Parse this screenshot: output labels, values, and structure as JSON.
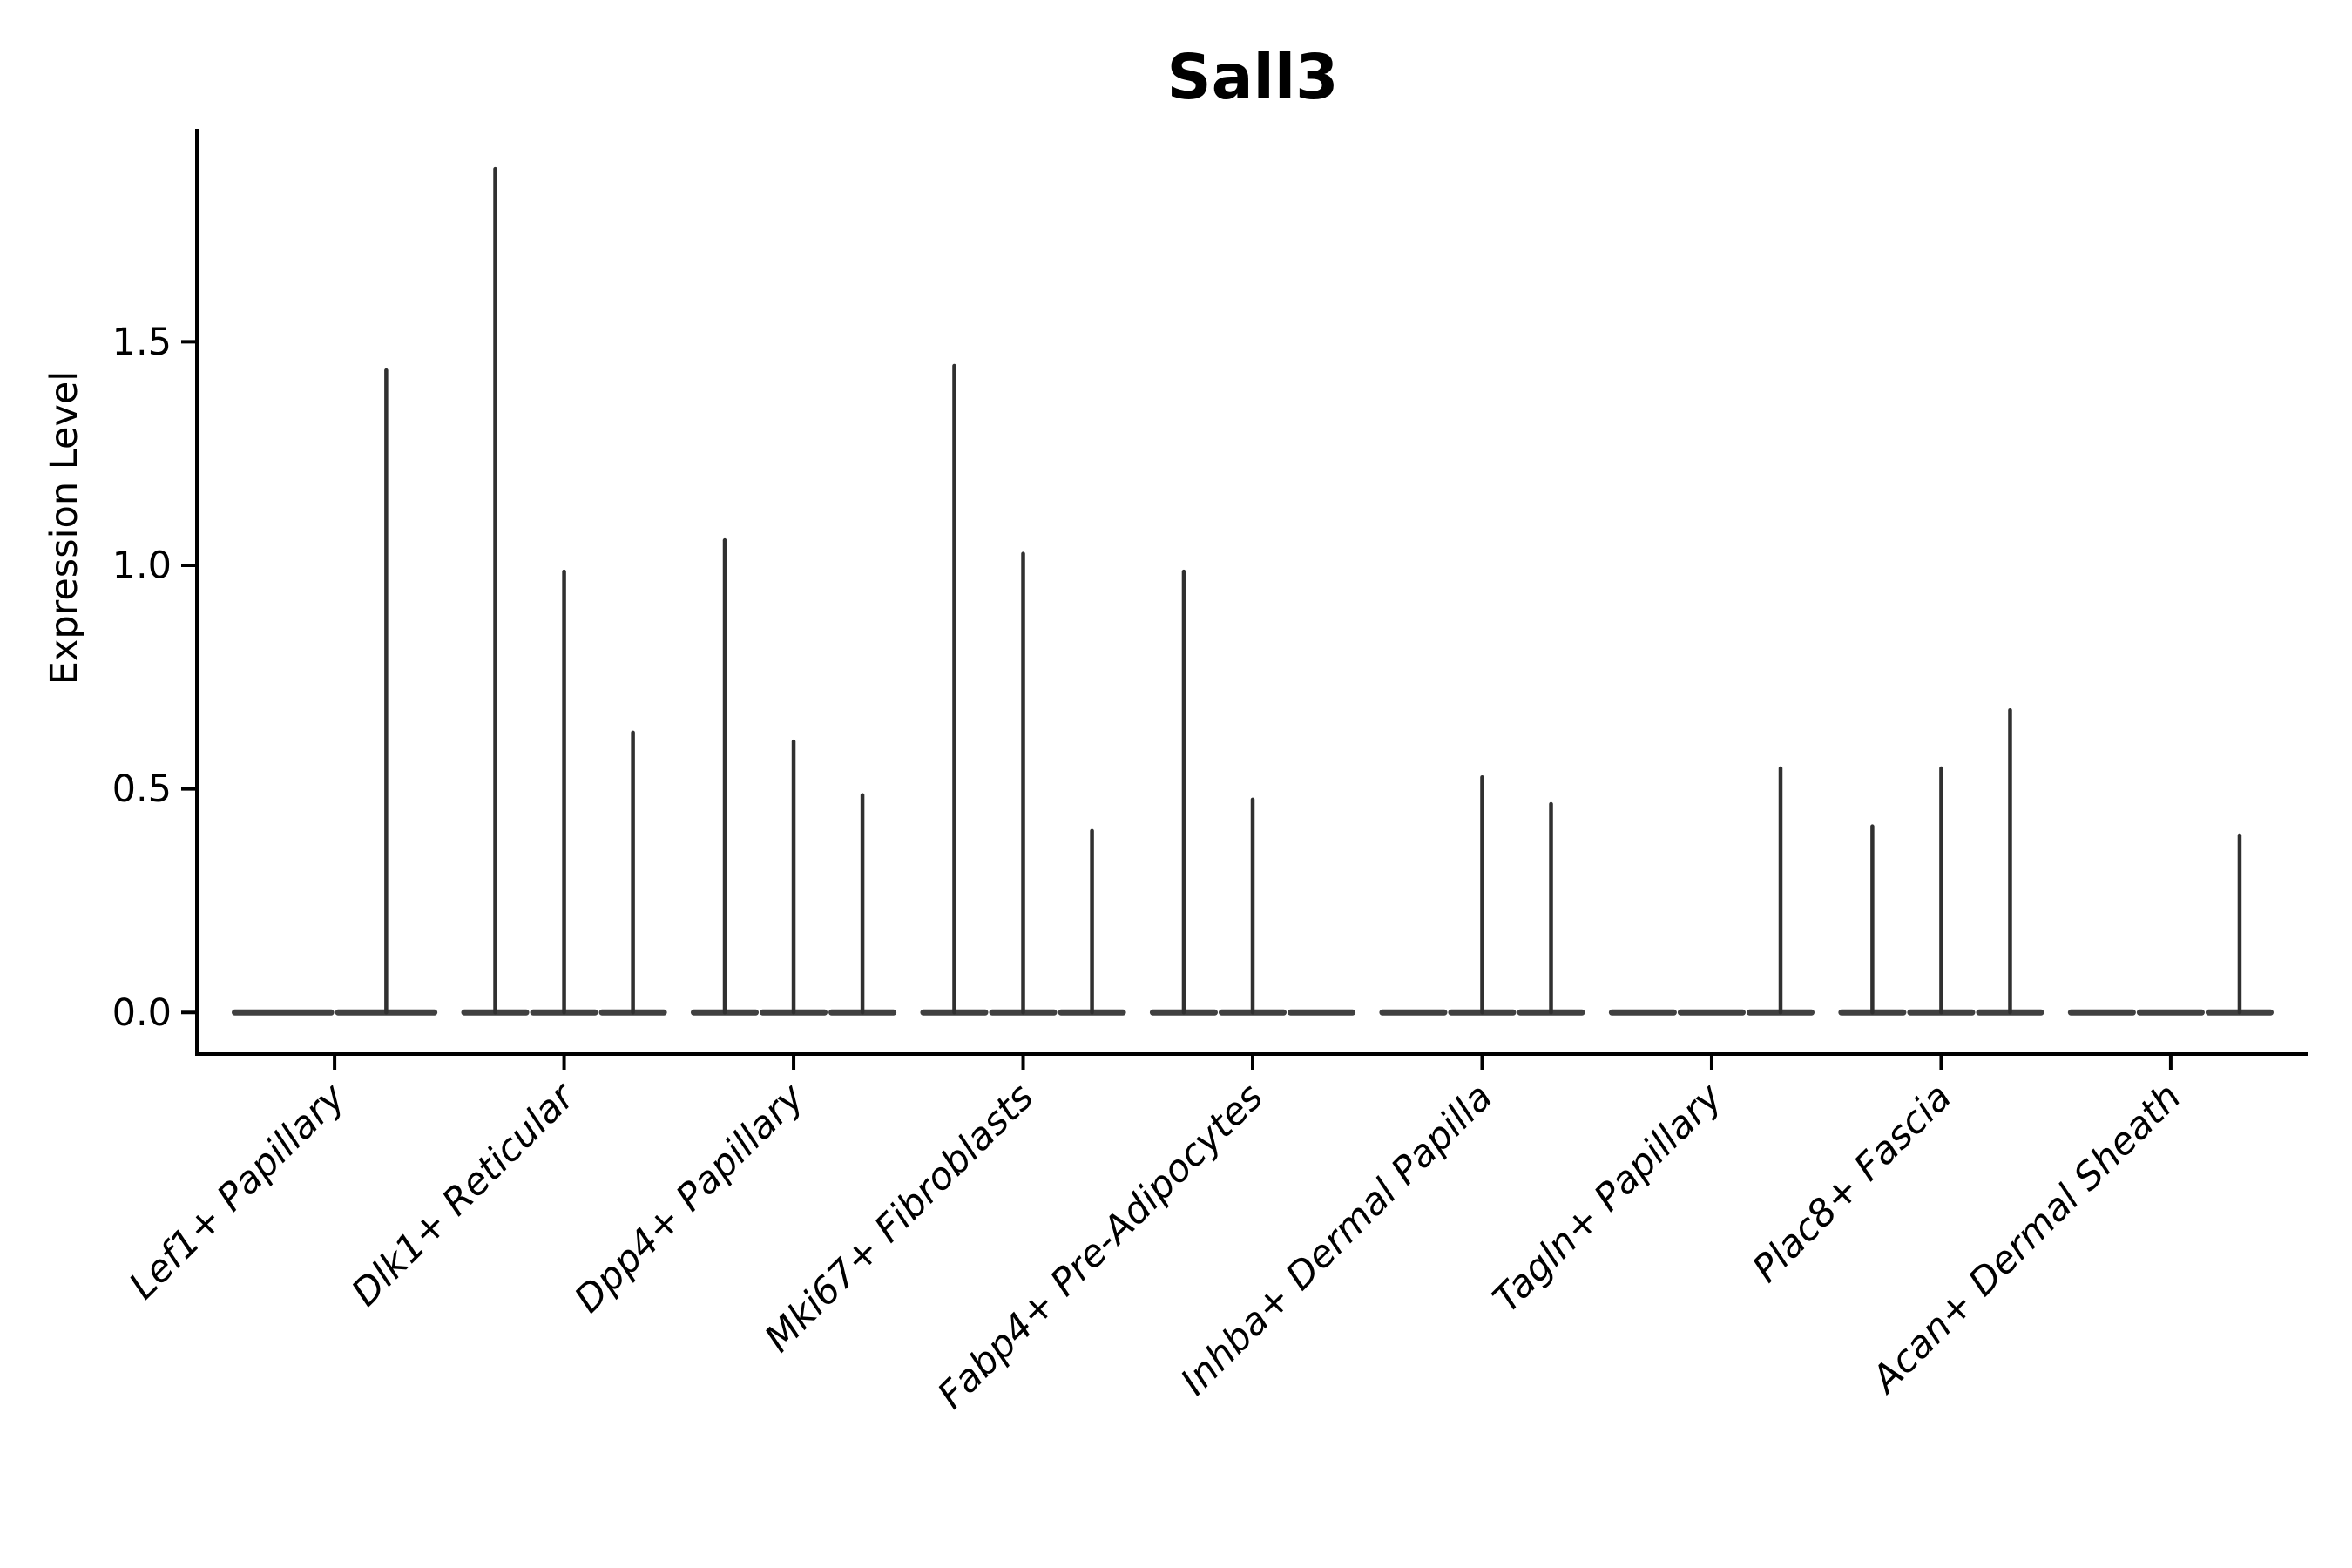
{
  "chart_data": {
    "type": "violin",
    "title": "Sall3",
    "ylabel": "Expression Level",
    "xlabel": "",
    "yticks": [
      0.0,
      0.5,
      1.0,
      1.5
    ],
    "ytick_labels": [
      "0.0",
      "0.5",
      "1.0",
      "1.5"
    ],
    "ylim": [
      -0.093,
      1.976
    ],
    "xlim": [
      -0.6,
      8.6
    ],
    "group_slot_width": 0.9,
    "grid": false,
    "legend": "none",
    "x_tick_rotation_deg": 45,
    "categories": [
      "Lef1+ Papillary",
      "Dlk1+ Reticular",
      "Dpp4+ Papillary",
      "Mki67+ Fibroblasts",
      "Fabp4+ Pre-Adipocytes",
      "Inhba+ Dermal Papilla",
      "Tagln+ Papillary",
      "Plac8+ Fascia",
      "Acan+ Dermal Sheath"
    ],
    "series": [
      {
        "category": "Lef1+ Papillary",
        "violin_peaks": [
          0,
          1.44
        ]
      },
      {
        "category": "Dlk1+ Reticular",
        "violin_peaks": [
          1.89,
          0.99,
          0.63
        ]
      },
      {
        "category": "Dpp4+ Papillary",
        "violin_peaks": [
          1.06,
          0.61,
          0.49
        ]
      },
      {
        "category": "Mki67+ Fibroblasts",
        "violin_peaks": [
          1.45,
          1.03,
          0.41
        ]
      },
      {
        "category": "Fabp4+ Pre-Adipocytes",
        "violin_peaks": [
          0.99,
          0.48,
          0
        ]
      },
      {
        "category": "Inhba+ Dermal Papilla",
        "violin_peaks": [
          0,
          0.53,
          0.47
        ]
      },
      {
        "category": "Tagln+ Papillary",
        "violin_peaks": [
          0,
          0,
          0.55
        ]
      },
      {
        "category": "Plac8+ Fascia",
        "violin_peaks": [
          0.42,
          0.55,
          0.68
        ]
      },
      {
        "category": "Acan+ Dermal Sheath",
        "violin_peaks": [
          0,
          0,
          0.4
        ]
      }
    ],
    "colors": {
      "violin": "#303030",
      "axis": "#000000",
      "text": "#000000",
      "background": "#ffffff"
    }
  }
}
